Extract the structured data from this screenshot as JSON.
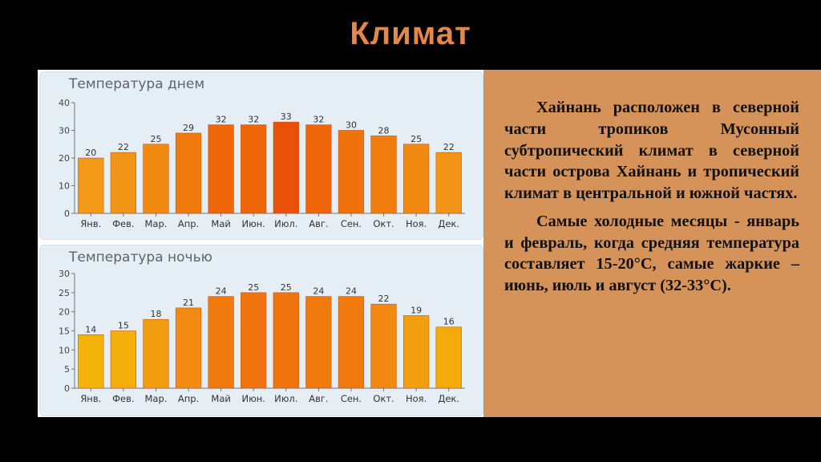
{
  "slide": {
    "title": "Климат"
  },
  "text": {
    "paragraph1": "Хайнань расположен в северной части тропиков Мусонный субтропический климат в северной части острова Хайнань и тропический климат в центральной и южной частях.",
    "paragraph2": "Самые холодные месяцы - январь и февраль, когда средняя температура составляет 15-20°С, самые жаркие – июнь, июль и август (32-33°С)."
  },
  "chart_data": [
    {
      "type": "bar",
      "title": "Температура днем",
      "categories": [
        "Янв.",
        "Фев.",
        "Мар.",
        "Апр.",
        "Май",
        "Июн.",
        "Июл.",
        "Авг.",
        "Сен.",
        "Окт.",
        "Ноя.",
        "Дек."
      ],
      "values": [
        20,
        22,
        25,
        29,
        32,
        32,
        33,
        32,
        30,
        28,
        25,
        22
      ],
      "ylim": [
        0,
        40
      ],
      "yticks": [
        0,
        10,
        20,
        30,
        40
      ],
      "grid": false,
      "colors": [
        "#f29a16",
        "#f29416",
        "#f28a12",
        "#f07a0e",
        "#ee650a",
        "#ee650a",
        "#e9500a",
        "#ee650a",
        "#ef720c",
        "#f07c0e",
        "#f28a12",
        "#f29416"
      ]
    },
    {
      "type": "bar",
      "title": "Температура ночью",
      "categories": [
        "Янв.",
        "Фев.",
        "Мар.",
        "Апр.",
        "Май",
        "Июн.",
        "Июл.",
        "Авг.",
        "Сен.",
        "Окт.",
        "Ноя.",
        "Дек."
      ],
      "values": [
        14,
        15,
        18,
        21,
        24,
        25,
        25,
        24,
        24,
        22,
        19,
        16
      ],
      "ylim": [
        0,
        30
      ],
      "yticks": [
        0,
        5,
        10,
        15,
        20,
        25,
        30
      ],
      "grid": false,
      "colors": [
        "#f3b40a",
        "#f3ae0a",
        "#f29c10",
        "#f28b12",
        "#f07a0e",
        "#ef740e",
        "#ef740e",
        "#f07a0e",
        "#f07a0e",
        "#f28812",
        "#f2a010",
        "#f3aa0a"
      ]
    }
  ]
}
